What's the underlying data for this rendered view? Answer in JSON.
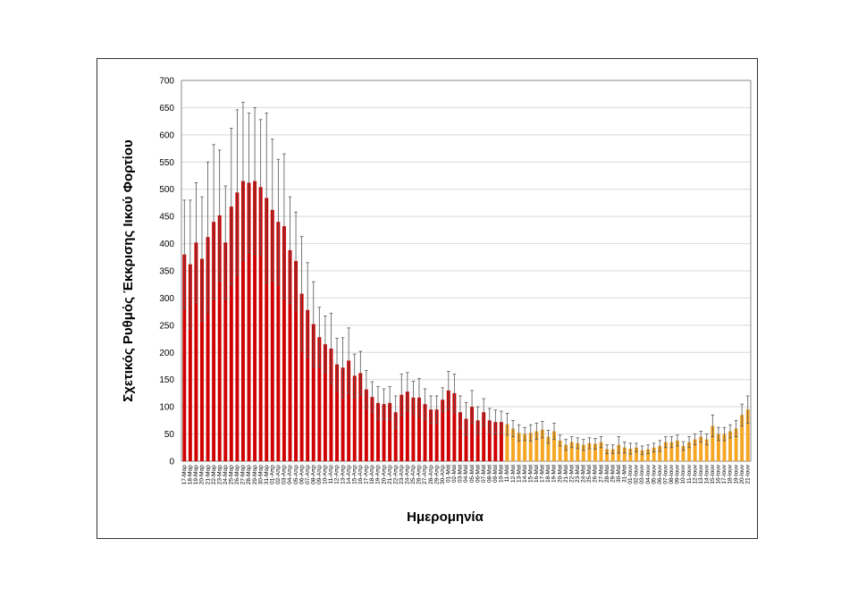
{
  "chart_data": {
    "type": "bar",
    "y_label": "Σχετικός Ρυθμός Έκκρισης Ιικού Φορτίου",
    "x_label": "Ημερομηνία",
    "categories": [
      "17-Μαρ",
      "18-Μαρ",
      "19-Μαρ",
      "20-Μαρ",
      "21-Μαρ",
      "22-Μαρ",
      "23-Μαρ",
      "24-Μαρ",
      "25-Μαρ",
      "26-Μαρ",
      "27-Μαρ",
      "28-Μαρ",
      "29-Μαρ",
      "30-Μαρ",
      "31-Μαρ",
      "01-Απρ",
      "02-Απρ",
      "03-Απρ",
      "04-Απρ",
      "05-Απρ",
      "06-Απρ",
      "07-Απρ",
      "08-Απρ",
      "09-Απρ",
      "10-Απρ",
      "11-Απρ",
      "12-Απρ",
      "13-Απρ",
      "14-Απρ",
      "15-Απρ",
      "16-Απρ",
      "17-Απρ",
      "18-Απρ",
      "19-Απρ",
      "20-Απρ",
      "21-Απρ",
      "22-Απρ",
      "23-Απρ",
      "24-Απρ",
      "25-Απρ",
      "26-Απρ",
      "27-Απρ",
      "28-Απρ",
      "29-Απρ",
      "30-Απρ",
      "01-Μαϊ",
      "02-Μαϊ",
      "03-Μαϊ",
      "04-Μαϊ",
      "05-Μαϊ",
      "06-Μαϊ",
      "07-Μαϊ",
      "08-Μαϊ",
      "09-Μαϊ",
      "10-Μαϊ",
      "11-Μαϊ",
      "12-Μαϊ",
      "13-Μαϊ",
      "14-Μαϊ",
      "15-Μαϊ",
      "16-Μαϊ",
      "17-Μαϊ",
      "18-Μαϊ",
      "19-Μαϊ",
      "20-Μαϊ",
      "21-Μαϊ",
      "22-Μαϊ",
      "23-Μαϊ",
      "24-Μαϊ",
      "25-Μαϊ",
      "26-Μαϊ",
      "27-Μαϊ",
      "28-Μαϊ",
      "29-Μαϊ",
      "30-Μαϊ",
      "31-Μαϊ",
      "01-Ιουν",
      "02-Ιουν",
      "03-Ιουν",
      "04-Ιουν",
      "05-Ιουν",
      "06-Ιουν",
      "07-Ιουν",
      "08-Ιουν",
      "09-Ιουν",
      "10-Ιουν",
      "11-Ιουν",
      "12-Ιουν",
      "13-Ιουν",
      "14-Ιουν",
      "15-Ιουν",
      "16-Ιουν",
      "17-Ιουν",
      "18-Ιουν",
      "19-Ιουν",
      "20-Ιουν",
      "21-Ιουν"
    ],
    "values": [
      380,
      362,
      402,
      372,
      412,
      440,
      452,
      402,
      468,
      494,
      515,
      512,
      515,
      504,
      484,
      462,
      440,
      432,
      388,
      368,
      308,
      278,
      252,
      228,
      215,
      207,
      178,
      172,
      185,
      157,
      162,
      132,
      118,
      107,
      105,
      107,
      90,
      122,
      128,
      117,
      117,
      105,
      95,
      95,
      113,
      130,
      125,
      90,
      78,
      100,
      75,
      90,
      75,
      72,
      72,
      68,
      60,
      52,
      50,
      52,
      55,
      58,
      45,
      55,
      38,
      30,
      35,
      33,
      30,
      33,
      32,
      35,
      22,
      22,
      30,
      25,
      23,
      25,
      20,
      22,
      25,
      28,
      35,
      35,
      38,
      28,
      35,
      40,
      45,
      40,
      65,
      50,
      50,
      55,
      60,
      85,
      95
    ],
    "errors": [
      100,
      118,
      110,
      114,
      138,
      142,
      120,
      104,
      144,
      152,
      145,
      128,
      135,
      124,
      156,
      130,
      115,
      133,
      98,
      90,
      105,
      87,
      78,
      55,
      52,
      65,
      48,
      55,
      60,
      40,
      40,
      35,
      28,
      30,
      28,
      30,
      30,
      38,
      35,
      30,
      35,
      28,
      25,
      25,
      22,
      35,
      35,
      30,
      30,
      30,
      25,
      25,
      22,
      22,
      20,
      20,
      15,
      15,
      12,
      15,
      15,
      15,
      12,
      15,
      10,
      10,
      10,
      10,
      10,
      10,
      10,
      10,
      8,
      8,
      15,
      10,
      10,
      8,
      8,
      8,
      8,
      10,
      10,
      10,
      10,
      8,
      10,
      10,
      10,
      10,
      20,
      12,
      12,
      12,
      15,
      20,
      25
    ],
    "bar_colors": [
      "#d00000",
      "#d00000",
      "#d00000",
      "#d00000",
      "#d00000",
      "#d00000",
      "#d00000",
      "#d00000",
      "#d00000",
      "#d00000",
      "#d00000",
      "#d00000",
      "#d00000",
      "#d00000",
      "#d00000",
      "#d00000",
      "#d00000",
      "#d00000",
      "#d00000",
      "#d00000",
      "#d00000",
      "#d00000",
      "#d00000",
      "#d00000",
      "#d00000",
      "#d00000",
      "#d00000",
      "#d00000",
      "#d00000",
      "#d00000",
      "#d00000",
      "#d00000",
      "#d00000",
      "#d00000",
      "#d00000",
      "#d00000",
      "#d00000",
      "#d00000",
      "#d00000",
      "#d00000",
      "#d00000",
      "#d00000",
      "#d00000",
      "#d00000",
      "#d00000",
      "#d00000",
      "#d00000",
      "#d00000",
      "#d00000",
      "#d00000",
      "#d00000",
      "#d00000",
      "#d00000",
      "#d00000",
      "#d00000",
      "#f5a623",
      "#f5a623",
      "#f5a623",
      "#f5a623",
      "#f5a623",
      "#f5a623",
      "#f5a623",
      "#f5a623",
      "#f5a623",
      "#f5a623",
      "#f5a623",
      "#f5a623",
      "#f5a623",
      "#f5a623",
      "#f5a623",
      "#f5a623",
      "#f5a623",
      "#f5a623",
      "#f5a623",
      "#f5a623",
      "#f5a623",
      "#f5a623",
      "#f5a623",
      "#f5a623",
      "#f5a623",
      "#f5a623",
      "#f5a623",
      "#f5a623",
      "#f5a623",
      "#f5a623",
      "#f5a623",
      "#f5a623",
      "#f5a623",
      "#f5a623",
      "#f5a623",
      "#f5a623",
      "#f5a623",
      "#f5a623",
      "#f5a623",
      "#f5a623",
      "#f5a623",
      "#f5a623"
    ],
    "ylim": [
      0,
      700
    ],
    "yticks": [
      0,
      50,
      100,
      150,
      200,
      250,
      300,
      350,
      400,
      450,
      500,
      550,
      600,
      650,
      700
    ],
    "grid": true
  }
}
